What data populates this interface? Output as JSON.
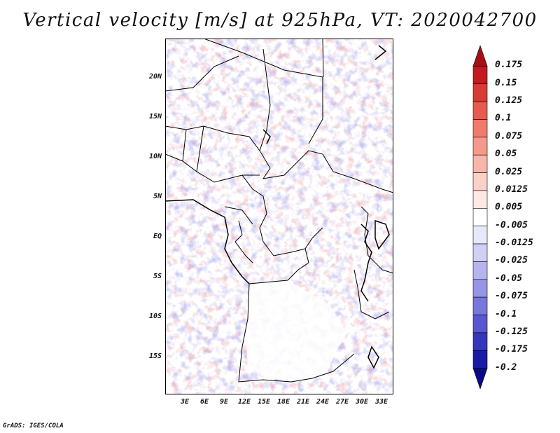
{
  "title": "Vertical velocity [m/s] at 925hPa, VT: 2020042700",
  "map": {
    "variable": "Vertical velocity",
    "units": "m/s",
    "level": "925hPa",
    "valid_time": "2020042700",
    "lat_ticks": [
      "20N",
      "15N",
      "10N",
      "5N",
      "EQ",
      "5S",
      "10S",
      "15S"
    ],
    "lon_ticks": [
      "3E",
      "6E",
      "9E",
      "12E",
      "15E",
      "18E",
      "21E",
      "24E",
      "27E",
      "30E",
      "33E"
    ]
  },
  "colorbar": {
    "labels": [
      "0.175",
      "0.15",
      "0.125",
      "0.1",
      "0.075",
      "0.05",
      "0.025",
      "0.0125",
      "0.005",
      "-0.005",
      "-0.0125",
      "-0.025",
      "-0.05",
      "-0.075",
      "-0.1",
      "-0.125",
      "-0.175",
      "-0.2"
    ],
    "colors": [
      "#a50f15",
      "#c21a1f",
      "#d83a34",
      "#e85a4d",
      "#ef7b6c",
      "#f49a8c",
      "#f8b6ab",
      "#fbd0c8",
      "#fde8e4",
      "#ffffff",
      "#e8e8fb",
      "#d0d0f6",
      "#b4b4ef",
      "#9696e6",
      "#7777dc",
      "#5757cf",
      "#3636bd",
      "#1a1aa6",
      "#0a0a88"
    ]
  },
  "credit": "GrADS: IGES/COLA"
}
